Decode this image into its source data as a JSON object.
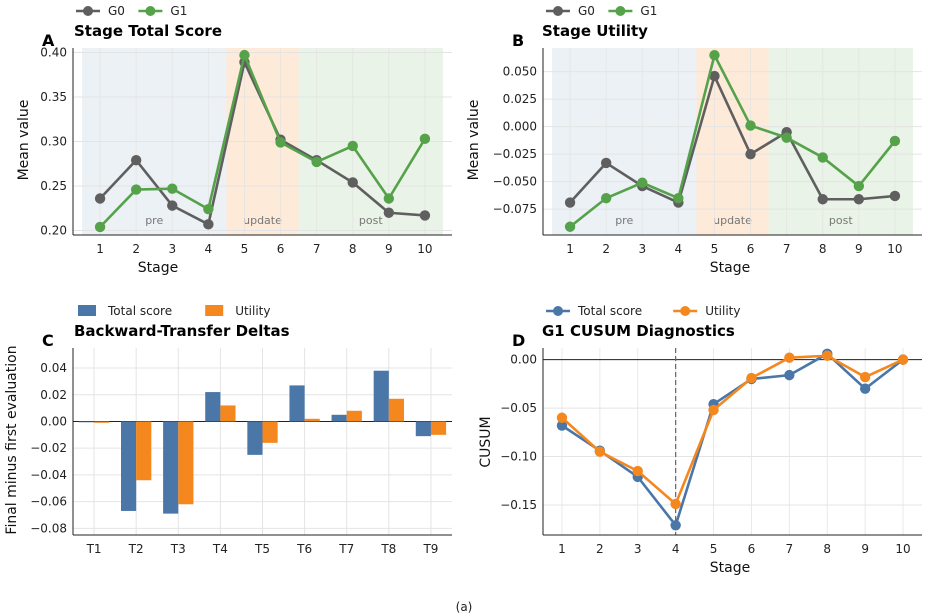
{
  "figure_caption": "(a)",
  "chart_data": [
    {
      "panel": "A",
      "type": "line",
      "title": "Stage Total Score",
      "xlabel": "Stage",
      "ylabel": "Mean value",
      "x": [
        1,
        2,
        3,
        4,
        5,
        6,
        7,
        8,
        9,
        10
      ],
      "xlim": [
        0.25,
        10.75
      ],
      "ylim": [
        0.195,
        0.405
      ],
      "yticks": [
        0.2,
        0.25,
        0.3,
        0.35,
        0.4
      ],
      "ytick_labels": [
        "0.20",
        "0.25",
        "0.30",
        "0.35",
        "0.40"
      ],
      "grid": true,
      "legend": "top-left, above plot",
      "regions": [
        {
          "label": "pre",
          "x0": 0.5,
          "x1": 4.5,
          "color": "#e6ecf3"
        },
        {
          "label": "update",
          "x0": 4.5,
          "x1": 6.5,
          "color": "#fde3cc"
        },
        {
          "label": "post",
          "x0": 6.5,
          "x1": 10.5,
          "color": "#e3efdf"
        }
      ],
      "series": [
        {
          "name": "G0",
          "color": "#5f5f5f",
          "values": [
            0.236,
            0.279,
            0.228,
            0.207,
            0.389,
            0.302,
            0.279,
            0.254,
            0.22,
            0.217
          ]
        },
        {
          "name": "G1",
          "color": "#55a24a",
          "values": [
            0.204,
            0.246,
            0.247,
            0.224,
            0.397,
            0.299,
            0.277,
            0.295,
            0.236,
            0.303
          ]
        }
      ]
    },
    {
      "panel": "B",
      "type": "line",
      "title": "Stage Utility",
      "xlabel": "Stage",
      "ylabel": "Mean value",
      "x": [
        1,
        2,
        3,
        4,
        5,
        6,
        7,
        8,
        9,
        10
      ],
      "xlim": [
        0.25,
        10.75
      ],
      "ylim": [
        -0.0985,
        0.0715
      ],
      "yticks": [
        -0.075,
        -0.05,
        -0.025,
        0.0,
        0.025,
        0.05
      ],
      "ytick_labels": [
        "−0.075",
        "−0.050",
        "−0.025",
        "0.000",
        "0.025",
        "0.050"
      ],
      "grid": true,
      "legend": "top-left, above plot",
      "regions": [
        {
          "label": "pre",
          "x0": 0.5,
          "x1": 4.5,
          "color": "#e6ecf3"
        },
        {
          "label": "update",
          "x0": 4.5,
          "x1": 6.5,
          "color": "#fde3cc"
        },
        {
          "label": "post",
          "x0": 6.5,
          "x1": 10.5,
          "color": "#e3efdf"
        }
      ],
      "series": [
        {
          "name": "G0",
          "color": "#5f5f5f",
          "values": [
            -0.069,
            -0.033,
            -0.054,
            -0.069,
            0.046,
            -0.025,
            -0.005,
            -0.066,
            -0.066,
            -0.063
          ]
        },
        {
          "name": "G1",
          "color": "#55a24a",
          "values": [
            -0.091,
            -0.065,
            -0.051,
            -0.065,
            0.065,
            0.001,
            -0.01,
            -0.028,
            -0.054,
            -0.013
          ]
        }
      ]
    },
    {
      "panel": "C",
      "type": "bar",
      "title": "Backward-Transfer Deltas",
      "xlabel": "",
      "ylabel": "Final minus first evaluation",
      "categories": [
        "T1",
        "T2",
        "T3",
        "T4",
        "T5",
        "T6",
        "T7",
        "T8",
        "T9"
      ],
      "ylim": [
        -0.085,
        0.055
      ],
      "yticks": [
        -0.08,
        -0.06,
        -0.04,
        -0.02,
        0.0,
        0.02,
        0.04
      ],
      "ytick_labels": [
        "−0.08",
        "−0.06",
        "−0.04",
        "−0.02",
        "0.00",
        "0.02",
        "0.04"
      ],
      "grid": true,
      "legend": "top-left, above plot",
      "series": [
        {
          "name": "Total score",
          "color": "#4a76a8",
          "values": [
            0.0,
            -0.067,
            -0.069,
            0.022,
            -0.025,
            0.027,
            0.005,
            0.038,
            -0.011
          ]
        },
        {
          "name": "Utility",
          "color": "#f5871f",
          "values": [
            -0.001,
            -0.044,
            -0.062,
            0.012,
            -0.016,
            0.002,
            0.008,
            0.017,
            -0.01
          ]
        }
      ]
    },
    {
      "panel": "D",
      "type": "line",
      "title": "G1 CUSUM Diagnostics",
      "xlabel": "Stage",
      "ylabel": "CUSUM",
      "x": [
        1,
        2,
        3,
        4,
        5,
        6,
        7,
        8,
        9,
        10
      ],
      "xlim": [
        0.5,
        10.5
      ],
      "ylim": [
        -0.181,
        0.012
      ],
      "yticks": [
        -0.15,
        -0.1,
        -0.05,
        0.0
      ],
      "ytick_labels": [
        "−0.15",
        "−0.10",
        "−0.05",
        "0.00"
      ],
      "grid": true,
      "legend": "top-left, above plot",
      "vline_x": 4,
      "series": [
        {
          "name": "Total score",
          "color": "#4a76a8",
          "values": [
            -0.068,
            -0.094,
            -0.121,
            -0.171,
            -0.046,
            -0.02,
            -0.016,
            0.006,
            -0.03,
            0.0
          ]
        },
        {
          "name": "Utility",
          "color": "#f5871f",
          "values": [
            -0.06,
            -0.095,
            -0.115,
            -0.149,
            -0.052,
            -0.019,
            0.002,
            0.004,
            -0.018,
            0.0
          ]
        }
      ]
    }
  ]
}
